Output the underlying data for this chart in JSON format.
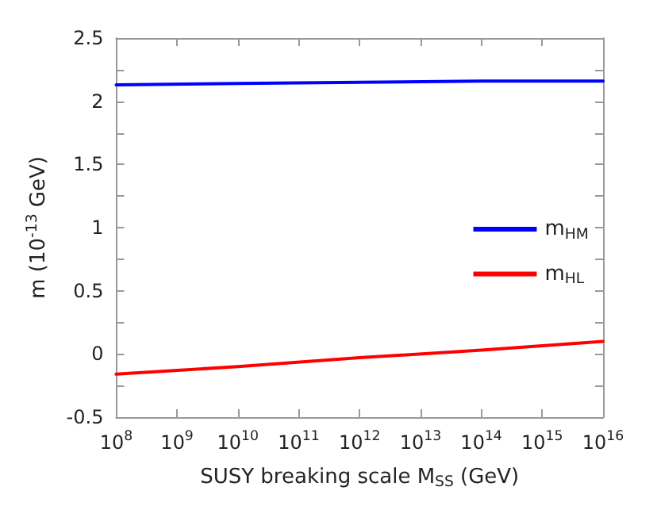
{
  "chart_data": {
    "type": "line",
    "xlabel": "SUSY breaking scale M$_{SS}$ (GeV)",
    "ylabel": "m (10$^{-13}$ GeV)",
    "log": "x",
    "xlim": [
      100000000,
      10000000000000000
    ],
    "xticks": [
      {
        "value": 100000000,
        "label": "10$^{8}$"
      },
      {
        "value": 1000000000,
        "label": "10$^{9}$"
      },
      {
        "value": 10000000000,
        "label": "10$^{10}$"
      },
      {
        "value": 100000000000,
        "label": "10$^{11}$"
      },
      {
        "value": 1000000000000,
        "label": "10$^{12}$"
      },
      {
        "value": 10000000000000,
        "label": "10$^{13}$"
      },
      {
        "value": 100000000000000,
        "label": "10$^{14}$"
      },
      {
        "value": 1000000000000000,
        "label": "10$^{15}$"
      },
      {
        "value": 10000000000000000,
        "label": "10$^{16}$"
      }
    ],
    "ylim": [
      -0.5,
      2.5
    ],
    "yticks": [
      -0.5,
      {
        "value": -0.25,
        "label": null
      },
      0,
      {
        "value": 0.25,
        "label": null
      },
      0.5,
      {
        "value": 0.75,
        "label": null
      },
      1,
      {
        "value": 1.25,
        "label": null
      },
      1.5,
      {
        "value": 1.75,
        "label": null
      },
      2,
      {
        "value": 2.25,
        "label": null
      },
      2.5
    ],
    "x": [
      100000000,
      10000000000,
      1000000000000,
      100000000000000,
      10000000000000000
    ],
    "series": [
      {
        "name": "m$_{HM}$",
        "color": "#0000ff",
        "values": [
          2.13,
          2.14,
          2.15,
          2.16,
          2.16
        ]
      },
      {
        "name": "m$_{HL}$",
        "color": "#ff0000",
        "values": [
          -0.16,
          -0.1,
          -0.03,
          0.03,
          0.1
        ]
      }
    ],
    "legend": "right",
    "grid": false,
    "marker": "none",
    "line_style": "solid"
  }
}
